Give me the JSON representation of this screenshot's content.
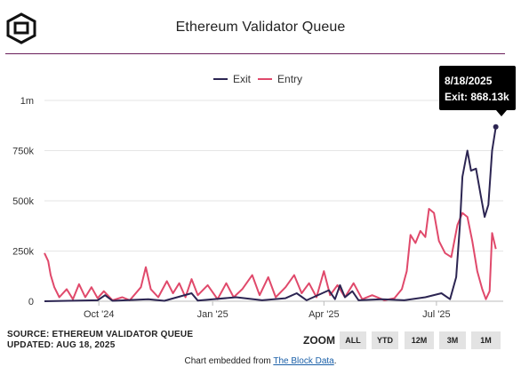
{
  "header": {
    "title": "Ethereum Validator Queue"
  },
  "legend": [
    {
      "label": "Exit",
      "color": "#2c2552"
    },
    {
      "label": "Entry",
      "color": "#e0496b"
    }
  ],
  "tooltip": {
    "date": "8/18/2025",
    "value": "Exit: 868.13k"
  },
  "footer": {
    "source": "SOURCE: ETHEREUM VALIDATOR QUEUE",
    "updated": "UPDATED: AUG 18, 2025",
    "embed_prefix": "Chart embedded from ",
    "embed_link": "The Block Data",
    "embed_suffix": "."
  },
  "zoom": {
    "label": "ZOOM",
    "buttons": [
      "ALL",
      "YTD",
      "12M",
      "3M",
      "1M"
    ]
  },
  "chart_data": {
    "type": "line",
    "title": "Ethereum Validator Queue",
    "ylim": [
      0,
      1000000
    ],
    "yticks": [
      0,
      250000,
      500000,
      750000,
      1000000
    ],
    "ytick_labels": [
      "0",
      "250k",
      "500k",
      "750k",
      "1m"
    ],
    "xlim": [
      "2024-08-18",
      "2025-08-24"
    ],
    "xticks": [
      "2024-10-01",
      "2025-01-01",
      "2025-04-01",
      "2025-07-01"
    ],
    "xtick_labels": [
      "Oct '24",
      "Jan '25",
      "Apr '25",
      "Jul '25"
    ],
    "grid": true,
    "legend_position": "top",
    "series": [
      {
        "name": "Exit",
        "color": "#2c2552",
        "points": [
          [
            "2024-08-18",
            0
          ],
          [
            "2024-09-30",
            5000
          ],
          [
            "2024-10-06",
            30000
          ],
          [
            "2024-10-12",
            2000
          ],
          [
            "2024-11-10",
            10000
          ],
          [
            "2024-11-23",
            2000
          ],
          [
            "2024-12-15",
            40000
          ],
          [
            "2024-12-20",
            3000
          ],
          [
            "2025-01-20",
            20000
          ],
          [
            "2025-02-10",
            5000
          ],
          [
            "2025-03-01",
            15000
          ],
          [
            "2025-03-10",
            40000
          ],
          [
            "2025-03-18",
            5000
          ],
          [
            "2025-04-05",
            55000
          ],
          [
            "2025-04-10",
            10000
          ],
          [
            "2025-04-14",
            80000
          ],
          [
            "2025-04-18",
            20000
          ],
          [
            "2025-04-24",
            50000
          ],
          [
            "2025-04-29",
            5000
          ],
          [
            "2025-05-18",
            10000
          ],
          [
            "2025-06-05",
            5000
          ],
          [
            "2025-06-22",
            20000
          ],
          [
            "2025-07-05",
            40000
          ],
          [
            "2025-07-12",
            10000
          ],
          [
            "2025-07-17",
            120000
          ],
          [
            "2025-07-20",
            380000
          ],
          [
            "2025-07-22",
            620000
          ],
          [
            "2025-07-26",
            750000
          ],
          [
            "2025-07-29",
            650000
          ],
          [
            "2025-08-02",
            660000
          ],
          [
            "2025-08-06",
            520000
          ],
          [
            "2025-08-09",
            420000
          ],
          [
            "2025-08-12",
            480000
          ],
          [
            "2025-08-15",
            750000
          ],
          [
            "2025-08-18",
            868130
          ]
        ]
      },
      {
        "name": "Entry",
        "color": "#e0496b",
        "points": [
          [
            "2024-08-18",
            240000
          ],
          [
            "2024-08-21",
            200000
          ],
          [
            "2024-08-23",
            130000
          ],
          [
            "2024-08-26",
            70000
          ],
          [
            "2024-08-30",
            20000
          ],
          [
            "2024-09-05",
            60000
          ],
          [
            "2024-09-10",
            10000
          ],
          [
            "2024-09-15",
            85000
          ],
          [
            "2024-09-20",
            20000
          ],
          [
            "2024-09-25",
            70000
          ],
          [
            "2024-09-30",
            15000
          ],
          [
            "2024-10-05",
            50000
          ],
          [
            "2024-10-12",
            5000
          ],
          [
            "2024-10-20",
            20000
          ],
          [
            "2024-10-26",
            5000
          ],
          [
            "2024-11-04",
            70000
          ],
          [
            "2024-11-08",
            170000
          ],
          [
            "2024-11-12",
            60000
          ],
          [
            "2024-11-18",
            20000
          ],
          [
            "2024-11-25",
            100000
          ],
          [
            "2024-11-30",
            40000
          ],
          [
            "2024-12-05",
            90000
          ],
          [
            "2024-12-10",
            20000
          ],
          [
            "2024-12-15",
            110000
          ],
          [
            "2024-12-20",
            30000
          ],
          [
            "2024-12-28",
            80000
          ],
          [
            "2025-01-05",
            10000
          ],
          [
            "2025-01-12",
            90000
          ],
          [
            "2025-01-18",
            20000
          ],
          [
            "2025-01-25",
            60000
          ],
          [
            "2025-02-02",
            130000
          ],
          [
            "2025-02-08",
            30000
          ],
          [
            "2025-02-15",
            120000
          ],
          [
            "2025-02-21",
            20000
          ],
          [
            "2025-03-01",
            70000
          ],
          [
            "2025-03-08",
            130000
          ],
          [
            "2025-03-14",
            40000
          ],
          [
            "2025-03-20",
            90000
          ],
          [
            "2025-03-26",
            20000
          ],
          [
            "2025-04-01",
            150000
          ],
          [
            "2025-04-06",
            30000
          ],
          [
            "2025-04-12",
            80000
          ],
          [
            "2025-04-18",
            20000
          ],
          [
            "2025-04-25",
            90000
          ],
          [
            "2025-05-02",
            10000
          ],
          [
            "2025-05-10",
            30000
          ],
          [
            "2025-05-20",
            5000
          ],
          [
            "2025-05-28",
            15000
          ],
          [
            "2025-06-03",
            60000
          ],
          [
            "2025-06-07",
            150000
          ],
          [
            "2025-06-10",
            330000
          ],
          [
            "2025-06-14",
            290000
          ],
          [
            "2025-06-18",
            350000
          ],
          [
            "2025-06-22",
            320000
          ],
          [
            "2025-06-25",
            460000
          ],
          [
            "2025-06-29",
            440000
          ],
          [
            "2025-07-03",
            300000
          ],
          [
            "2025-07-08",
            240000
          ],
          [
            "2025-07-13",
            220000
          ],
          [
            "2025-07-18",
            380000
          ],
          [
            "2025-07-22",
            440000
          ],
          [
            "2025-07-26",
            420000
          ],
          [
            "2025-07-30",
            300000
          ],
          [
            "2025-08-03",
            150000
          ],
          [
            "2025-08-07",
            60000
          ],
          [
            "2025-08-10",
            10000
          ],
          [
            "2025-08-13",
            50000
          ],
          [
            "2025-08-15",
            340000
          ],
          [
            "2025-08-18",
            260000
          ]
        ]
      }
    ]
  }
}
